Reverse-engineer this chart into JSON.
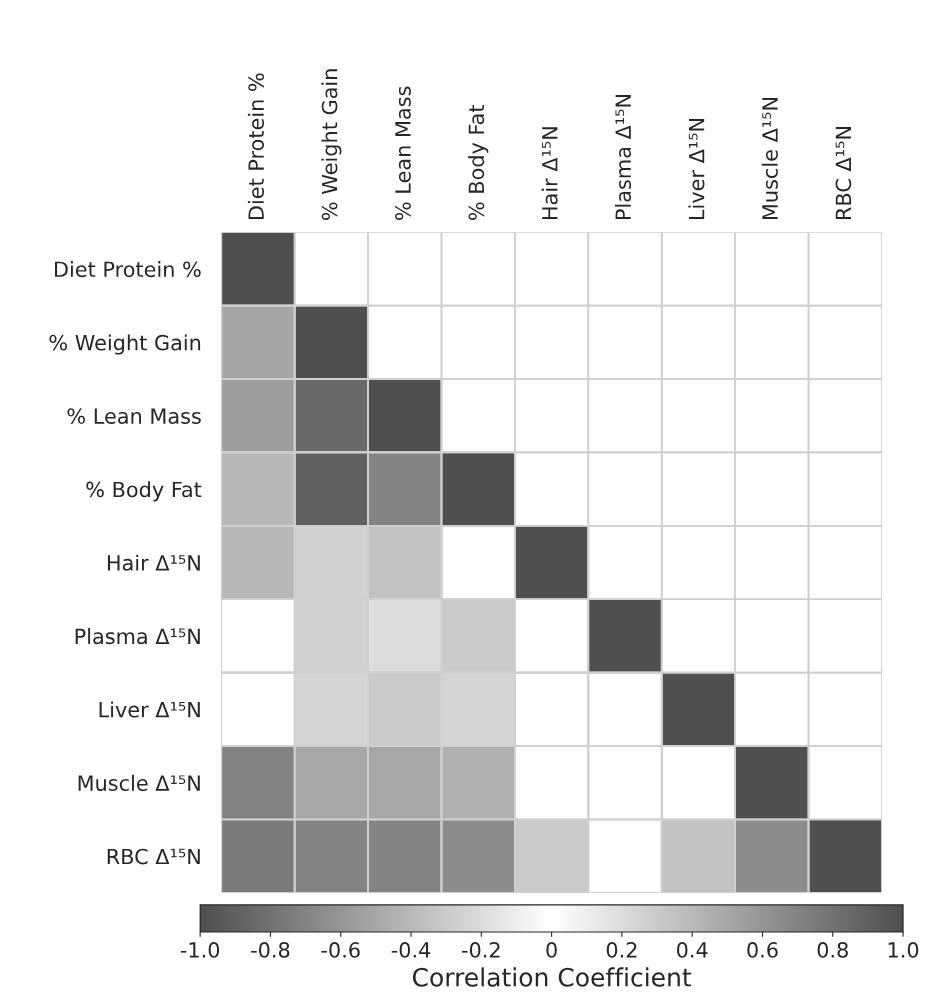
{
  "chart_data": {
    "type": "heatmap",
    "categories": [
      "Diet Protein %",
      "% Weight Gain",
      "% Lean Mass",
      "% Body Fat",
      "Hair Δ¹⁵N",
      "Plasma Δ¹⁵N",
      "Liver Δ¹⁵N",
      "Muscle Δ¹⁵N",
      "RBC Δ¹⁵N"
    ],
    "y_categories": [
      "Diet Protein %",
      "% Weight Gain",
      "% Lean Mass",
      "% Body Fat",
      "Hair Δ¹⁵N",
      "Plasma Δ¹⁵N",
      "Liver Δ¹⁵N",
      "Muscle Δ¹⁵N",
      "RBC Δ¹⁵N"
    ],
    "cells": [
      [
        1,
        null,
        null,
        null,
        null,
        null,
        null,
        null,
        null
      ],
      [
        0.5,
        1,
        null,
        null,
        null,
        null,
        null,
        null,
        null
      ],
      [
        0.55,
        0.85,
        1,
        null,
        null,
        null,
        null,
        null,
        null
      ],
      [
        0.4,
        0.9,
        0.7,
        1,
        null,
        null,
        null,
        null,
        null
      ],
      [
        0.4,
        0.25,
        0.35,
        null,
        1,
        null,
        null,
        null,
        null
      ],
      [
        null,
        0.25,
        0.2,
        0.3,
        null,
        1,
        null,
        null,
        null
      ],
      [
        null,
        -0.25,
        -0.3,
        -0.25,
        null,
        null,
        1,
        null,
        null
      ],
      [
        -0.7,
        -0.5,
        -0.5,
        -0.45,
        null,
        null,
        null,
        1,
        null
      ],
      [
        -0.75,
        -0.7,
        -0.7,
        -0.65,
        -0.3,
        null,
        0.35,
        0.65,
        1
      ]
    ],
    "clim": [
      -1,
      1
    ],
    "cticks": [
      {
        "value": -1,
        "label": "-1.0"
      },
      -0.8,
      -0.6,
      -0.4,
      -0.2,
      0,
      0.2,
      0.4,
      0.6,
      0.8,
      {
        "value": 1,
        "label": "1.0"
      }
    ],
    "clabel": "Correlation Coefficient"
  }
}
